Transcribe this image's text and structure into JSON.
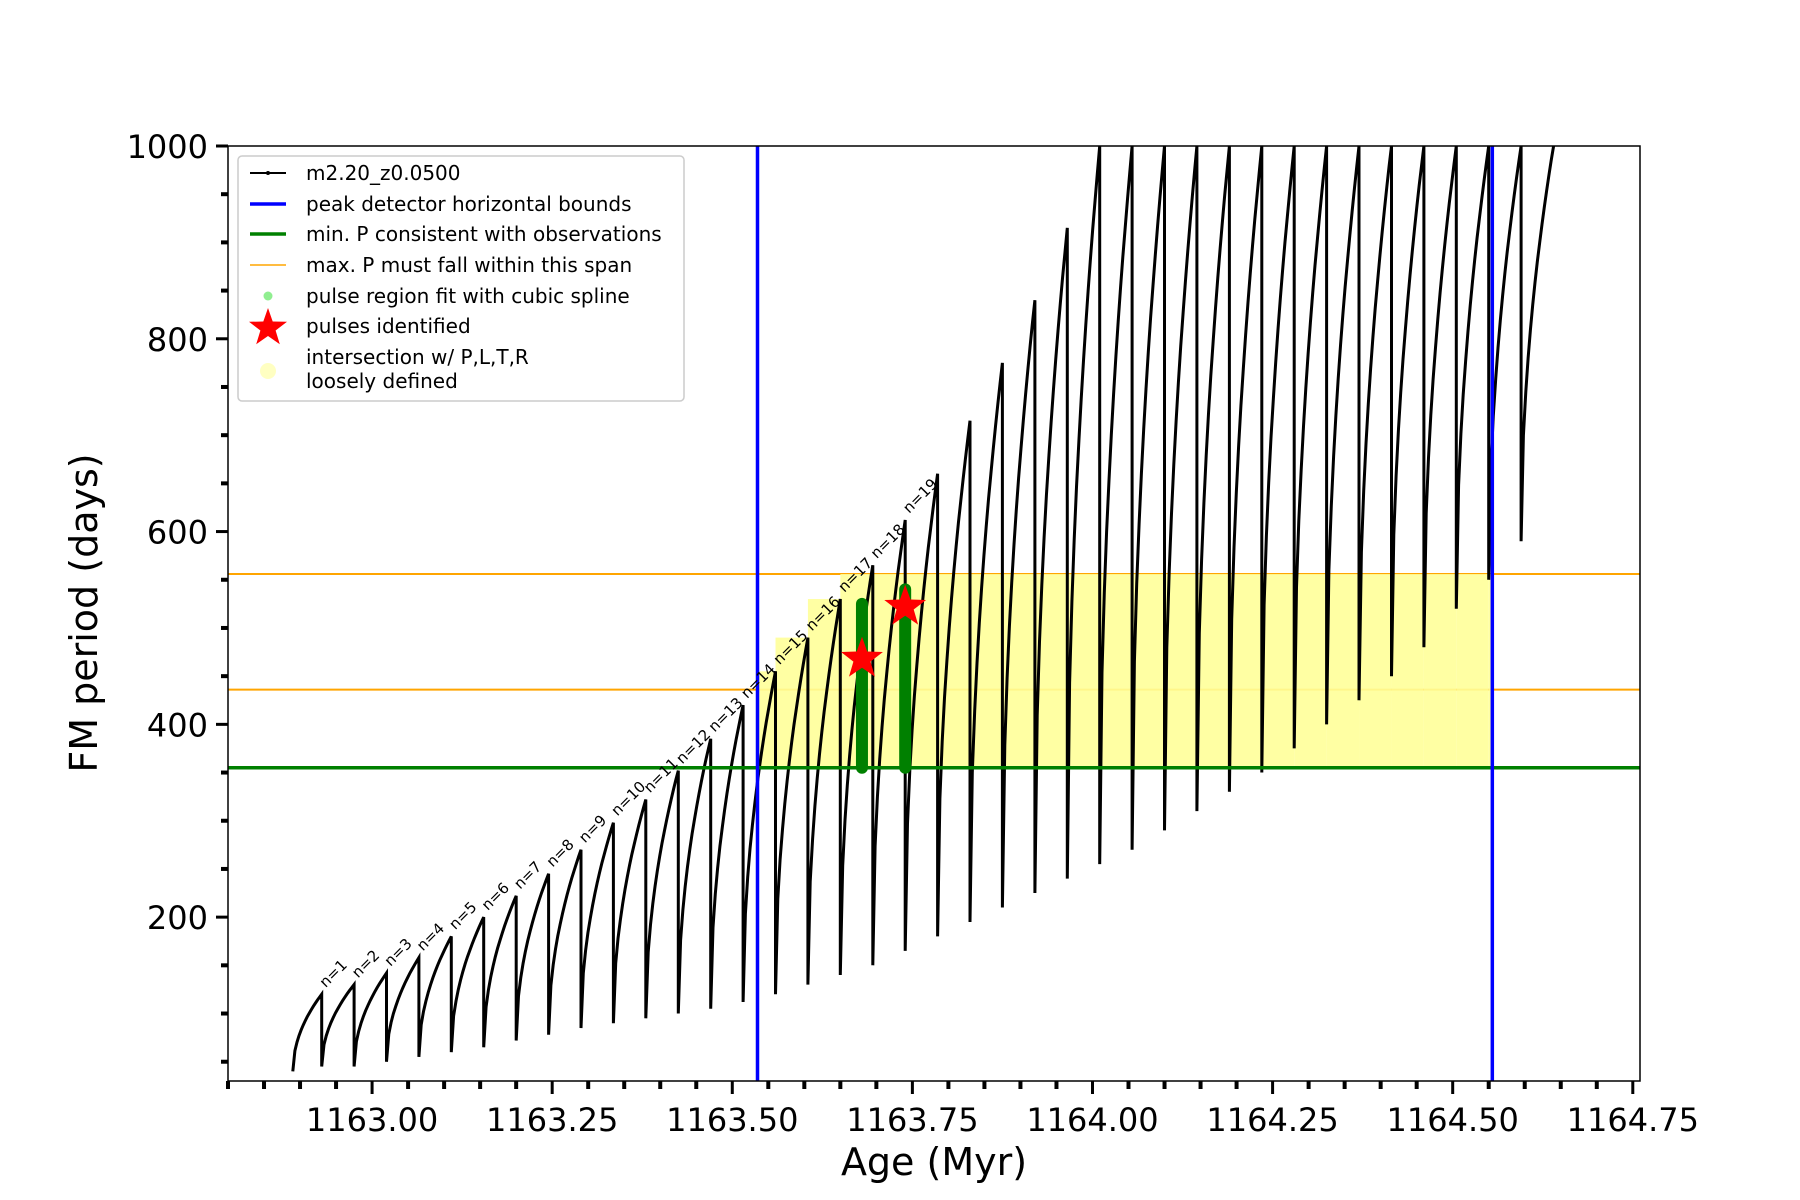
{
  "chart_data": {
    "type": "line",
    "xlabel": "Age (Myr)",
    "ylabel": "FM period (days)",
    "xlim": [
      1162.8,
      1164.76
    ],
    "ylim": [
      30,
      1000
    ],
    "xticks": [
      {
        "value": 1163.0,
        "label": "1163.00"
      },
      {
        "value": 1163.25,
        "label": "1163.25"
      },
      {
        "value": 1163.5,
        "label": "1163.50"
      },
      {
        "value": 1163.75,
        "label": "1163.75"
      },
      {
        "value": 1164.0,
        "label": "1164.00"
      },
      {
        "value": 1164.25,
        "label": "1164.25"
      },
      {
        "value": 1164.5,
        "label": "1164.50"
      },
      {
        "value": 1164.75,
        "label": "1164.75"
      }
    ],
    "yticks": [
      {
        "value": 200,
        "label": "200"
      },
      {
        "value": 400,
        "label": "400"
      },
      {
        "value": 600,
        "label": "600"
      },
      {
        "value": 800,
        "label": "800"
      },
      {
        "value": 1000,
        "label": "1000"
      }
    ],
    "legend": {
      "placement": "top-left",
      "entries": [
        {
          "key": "track",
          "label": "m2.20_z0.0500",
          "color": "#000000"
        },
        {
          "key": "bounds",
          "label": "peak detector horizontal bounds",
          "color": "#0000ff"
        },
        {
          "key": "minp",
          "label": "min. P consistent with observations",
          "color": "#008000"
        },
        {
          "key": "maxp",
          "label": "max. P must fall within this span",
          "color": "#ffa500"
        },
        {
          "key": "spline",
          "label": "pulse region fit with cubic spline",
          "color": "#90ee90"
        },
        {
          "key": "pulses",
          "label": "pulses identified",
          "color": "#ff0000"
        },
        {
          "key": "intersect",
          "label": "intersection w/ P,L,T,R",
          "label2": "loosely defined",
          "color": "#ffff99"
        }
      ]
    },
    "vertical_bounds": [
      1163.535,
      1164.555
    ],
    "min_period": 355,
    "max_period_span": [
      436,
      556
    ],
    "track_segments": [
      {
        "start": 1162.89,
        "end": 1162.93,
        "low": 40,
        "high": 120
      },
      {
        "start": 1162.93,
        "end": 1162.975,
        "low": 45,
        "high": 130
      },
      {
        "start": 1162.975,
        "end": 1163.02,
        "low": 45,
        "high": 142
      },
      {
        "start": 1163.02,
        "end": 1163.065,
        "low": 50,
        "high": 158
      },
      {
        "start": 1163.065,
        "end": 1163.11,
        "low": 55,
        "high": 180
      },
      {
        "start": 1163.11,
        "end": 1163.155,
        "low": 60,
        "high": 200
      },
      {
        "start": 1163.155,
        "end": 1163.2,
        "low": 65,
        "high": 222
      },
      {
        "start": 1163.2,
        "end": 1163.245,
        "low": 72,
        "high": 245
      },
      {
        "start": 1163.245,
        "end": 1163.29,
        "low": 78,
        "high": 270
      },
      {
        "start": 1163.29,
        "end": 1163.335,
        "low": 85,
        "high": 298
      },
      {
        "start": 1163.335,
        "end": 1163.38,
        "low": 90,
        "high": 322
      },
      {
        "start": 1163.38,
        "end": 1163.425,
        "low": 95,
        "high": 352
      },
      {
        "start": 1163.425,
        "end": 1163.47,
        "low": 100,
        "high": 385
      },
      {
        "start": 1163.47,
        "end": 1163.515,
        "low": 105,
        "high": 420
      },
      {
        "start": 1163.515,
        "end": 1163.56,
        "low": 112,
        "high": 455
      },
      {
        "start": 1163.56,
        "end": 1163.605,
        "low": 120,
        "high": 490
      },
      {
        "start": 1163.605,
        "end": 1163.65,
        "low": 130,
        "high": 530
      },
      {
        "start": 1163.65,
        "end": 1163.695,
        "low": 140,
        "high": 565
      },
      {
        "start": 1163.695,
        "end": 1163.74,
        "low": 150,
        "high": 612
      },
      {
        "start": 1163.74,
        "end": 1163.785,
        "low": 165,
        "high": 660
      },
      {
        "start": 1163.785,
        "end": 1163.83,
        "low": 180,
        "high": 715
      },
      {
        "start": 1163.83,
        "end": 1163.875,
        "low": 195,
        "high": 775
      },
      {
        "start": 1163.875,
        "end": 1163.92,
        "low": 210,
        "high": 840
      },
      {
        "start": 1163.92,
        "end": 1163.965,
        "low": 225,
        "high": 915
      },
      {
        "start": 1163.965,
        "end": 1164.01,
        "low": 240,
        "high": 1000
      },
      {
        "start": 1164.01,
        "end": 1164.055,
        "low": 255,
        "high": 1000
      },
      {
        "start": 1164.055,
        "end": 1164.1,
        "low": 270,
        "high": 1000
      },
      {
        "start": 1164.1,
        "end": 1164.145,
        "low": 290,
        "high": 1000
      },
      {
        "start": 1164.145,
        "end": 1164.19,
        "low": 310,
        "high": 1000
      },
      {
        "start": 1164.19,
        "end": 1164.235,
        "low": 330,
        "high": 1000
      },
      {
        "start": 1164.235,
        "end": 1164.28,
        "low": 350,
        "high": 1000
      },
      {
        "start": 1164.28,
        "end": 1164.325,
        "low": 375,
        "high": 1000
      },
      {
        "start": 1164.325,
        "end": 1164.37,
        "low": 400,
        "high": 1000
      },
      {
        "start": 1164.37,
        "end": 1164.415,
        "low": 425,
        "high": 1000
      },
      {
        "start": 1164.415,
        "end": 1164.46,
        "low": 450,
        "high": 1000
      },
      {
        "start": 1164.46,
        "end": 1164.505,
        "low": 480,
        "high": 1000
      },
      {
        "start": 1164.505,
        "end": 1164.55,
        "low": 520,
        "high": 1000
      },
      {
        "start": 1164.55,
        "end": 1164.595,
        "low": 550,
        "high": 1000
      },
      {
        "start": 1164.595,
        "end": 1164.64,
        "low": 590,
        "high": 1000
      }
    ],
    "pulse_labels": [
      {
        "label": "n=1",
        "x": 1162.93,
        "y": 120
      },
      {
        "label": "n=2",
        "x": 1162.975,
        "y": 130
      },
      {
        "label": "n=3",
        "x": 1163.02,
        "y": 142
      },
      {
        "label": "n=4",
        "x": 1163.065,
        "y": 158
      },
      {
        "label": "n=5",
        "x": 1163.11,
        "y": 180
      },
      {
        "label": "n=6",
        "x": 1163.155,
        "y": 200
      },
      {
        "label": "n=7",
        "x": 1163.2,
        "y": 222
      },
      {
        "label": "n=8",
        "x": 1163.245,
        "y": 245
      },
      {
        "label": "n=9",
        "x": 1163.29,
        "y": 270
      },
      {
        "label": "n=10",
        "x": 1163.335,
        "y": 298
      },
      {
        "label": "n=11",
        "x": 1163.38,
        "y": 322
      },
      {
        "label": "n=12",
        "x": 1163.425,
        "y": 352
      },
      {
        "label": "n=13",
        "x": 1163.47,
        "y": 385
      },
      {
        "label": "n=14",
        "x": 1163.515,
        "y": 420
      },
      {
        "label": "n=15",
        "x": 1163.56,
        "y": 455
      },
      {
        "label": "n=16",
        "x": 1163.605,
        "y": 490
      },
      {
        "label": "n=17",
        "x": 1163.65,
        "y": 530
      },
      {
        "label": "n=18",
        "x": 1163.695,
        "y": 565
      },
      {
        "label": "n=19",
        "x": 1163.74,
        "y": 612
      }
    ],
    "pulses_identified": [
      {
        "x": 1163.68,
        "y": 468
      },
      {
        "x": 1163.74,
        "y": 522
      }
    ],
    "spline_regions": [
      {
        "x": 1163.68,
        "low": 355,
        "high": 525
      },
      {
        "x": 1163.74,
        "low": 355,
        "high": 540
      }
    ]
  }
}
